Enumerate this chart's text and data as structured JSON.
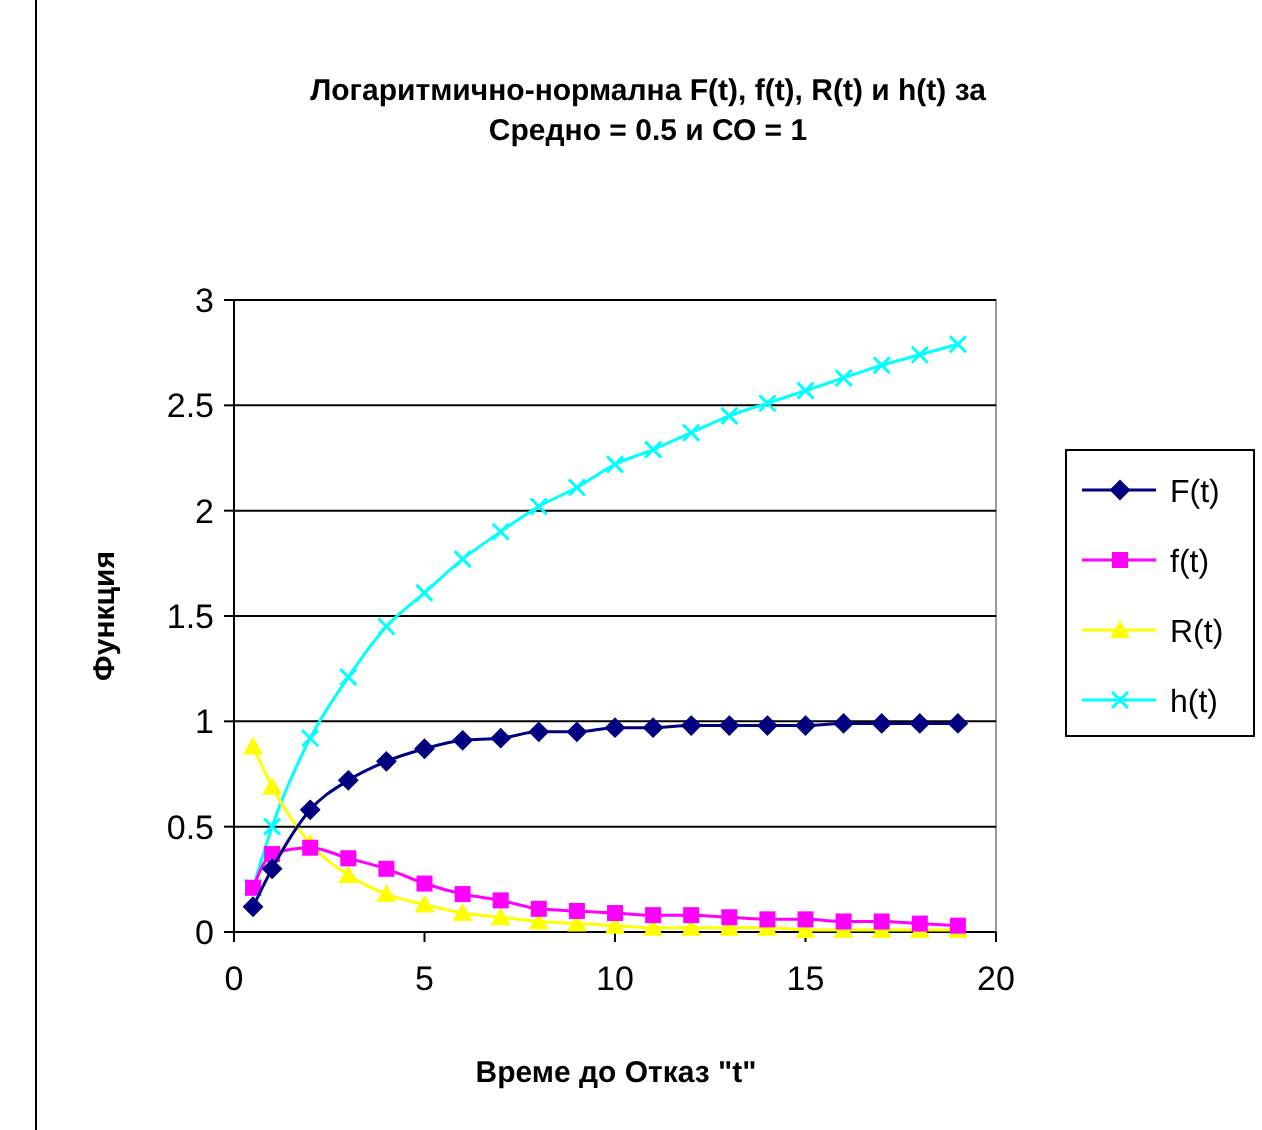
{
  "chart_data": {
    "type": "line",
    "title": "Логаритмично-нормална F(t), f(t), R(t) и h(t) за",
    "subtitle": "Средно = 0.5 и СО = 1",
    "xlabel": "Време до Отказ \"t\"",
    "ylabel": "Функция",
    "x": [
      0.5,
      1,
      2,
      3,
      4,
      5,
      6,
      7,
      8,
      9,
      10,
      11,
      12,
      13,
      14,
      15,
      16,
      17,
      18,
      19
    ],
    "xlim": [
      0,
      20
    ],
    "xticks": [
      0,
      5,
      10,
      15,
      20
    ],
    "ylim": [
      0,
      3
    ],
    "yticks": [
      0,
      0.5,
      1,
      1.5,
      2,
      2.5,
      3
    ],
    "grid": "y",
    "legend": "right",
    "series": [
      {
        "name": "F(t)",
        "color": "#000080",
        "marker": "diamond",
        "values": [
          0.12,
          0.3,
          0.58,
          0.72,
          0.81,
          0.87,
          0.91,
          0.92,
          0.95,
          0.95,
          0.97,
          0.97,
          0.98,
          0.98,
          0.98,
          0.98,
          0.99,
          0.99,
          0.99,
          0.99
        ]
      },
      {
        "name": "f(t)",
        "color": "#ff00ff",
        "marker": "square",
        "values": [
          0.21,
          0.37,
          0.4,
          0.35,
          0.3,
          0.23,
          0.18,
          0.15,
          0.11,
          0.1,
          0.09,
          0.08,
          0.08,
          0.07,
          0.06,
          0.06,
          0.05,
          0.05,
          0.04,
          0.03
        ]
      },
      {
        "name": "R(t)",
        "color": "#ffff00",
        "marker": "triangle",
        "values": [
          0.88,
          0.69,
          0.42,
          0.27,
          0.18,
          0.13,
          0.09,
          0.07,
          0.05,
          0.04,
          0.03,
          0.02,
          0.02,
          0.02,
          0.02,
          0.01,
          0.01,
          0.01,
          0.01,
          0.01
        ]
      },
      {
        "name": "h(t)",
        "color": "#00ffff",
        "marker": "cross",
        "values": [
          0.21,
          0.5,
          0.92,
          1.21,
          1.45,
          1.61,
          1.77,
          1.9,
          2.02,
          2.11,
          2.22,
          2.29,
          2.37,
          2.45,
          2.51,
          2.57,
          2.63,
          2.69,
          2.74,
          2.79
        ]
      }
    ]
  }
}
